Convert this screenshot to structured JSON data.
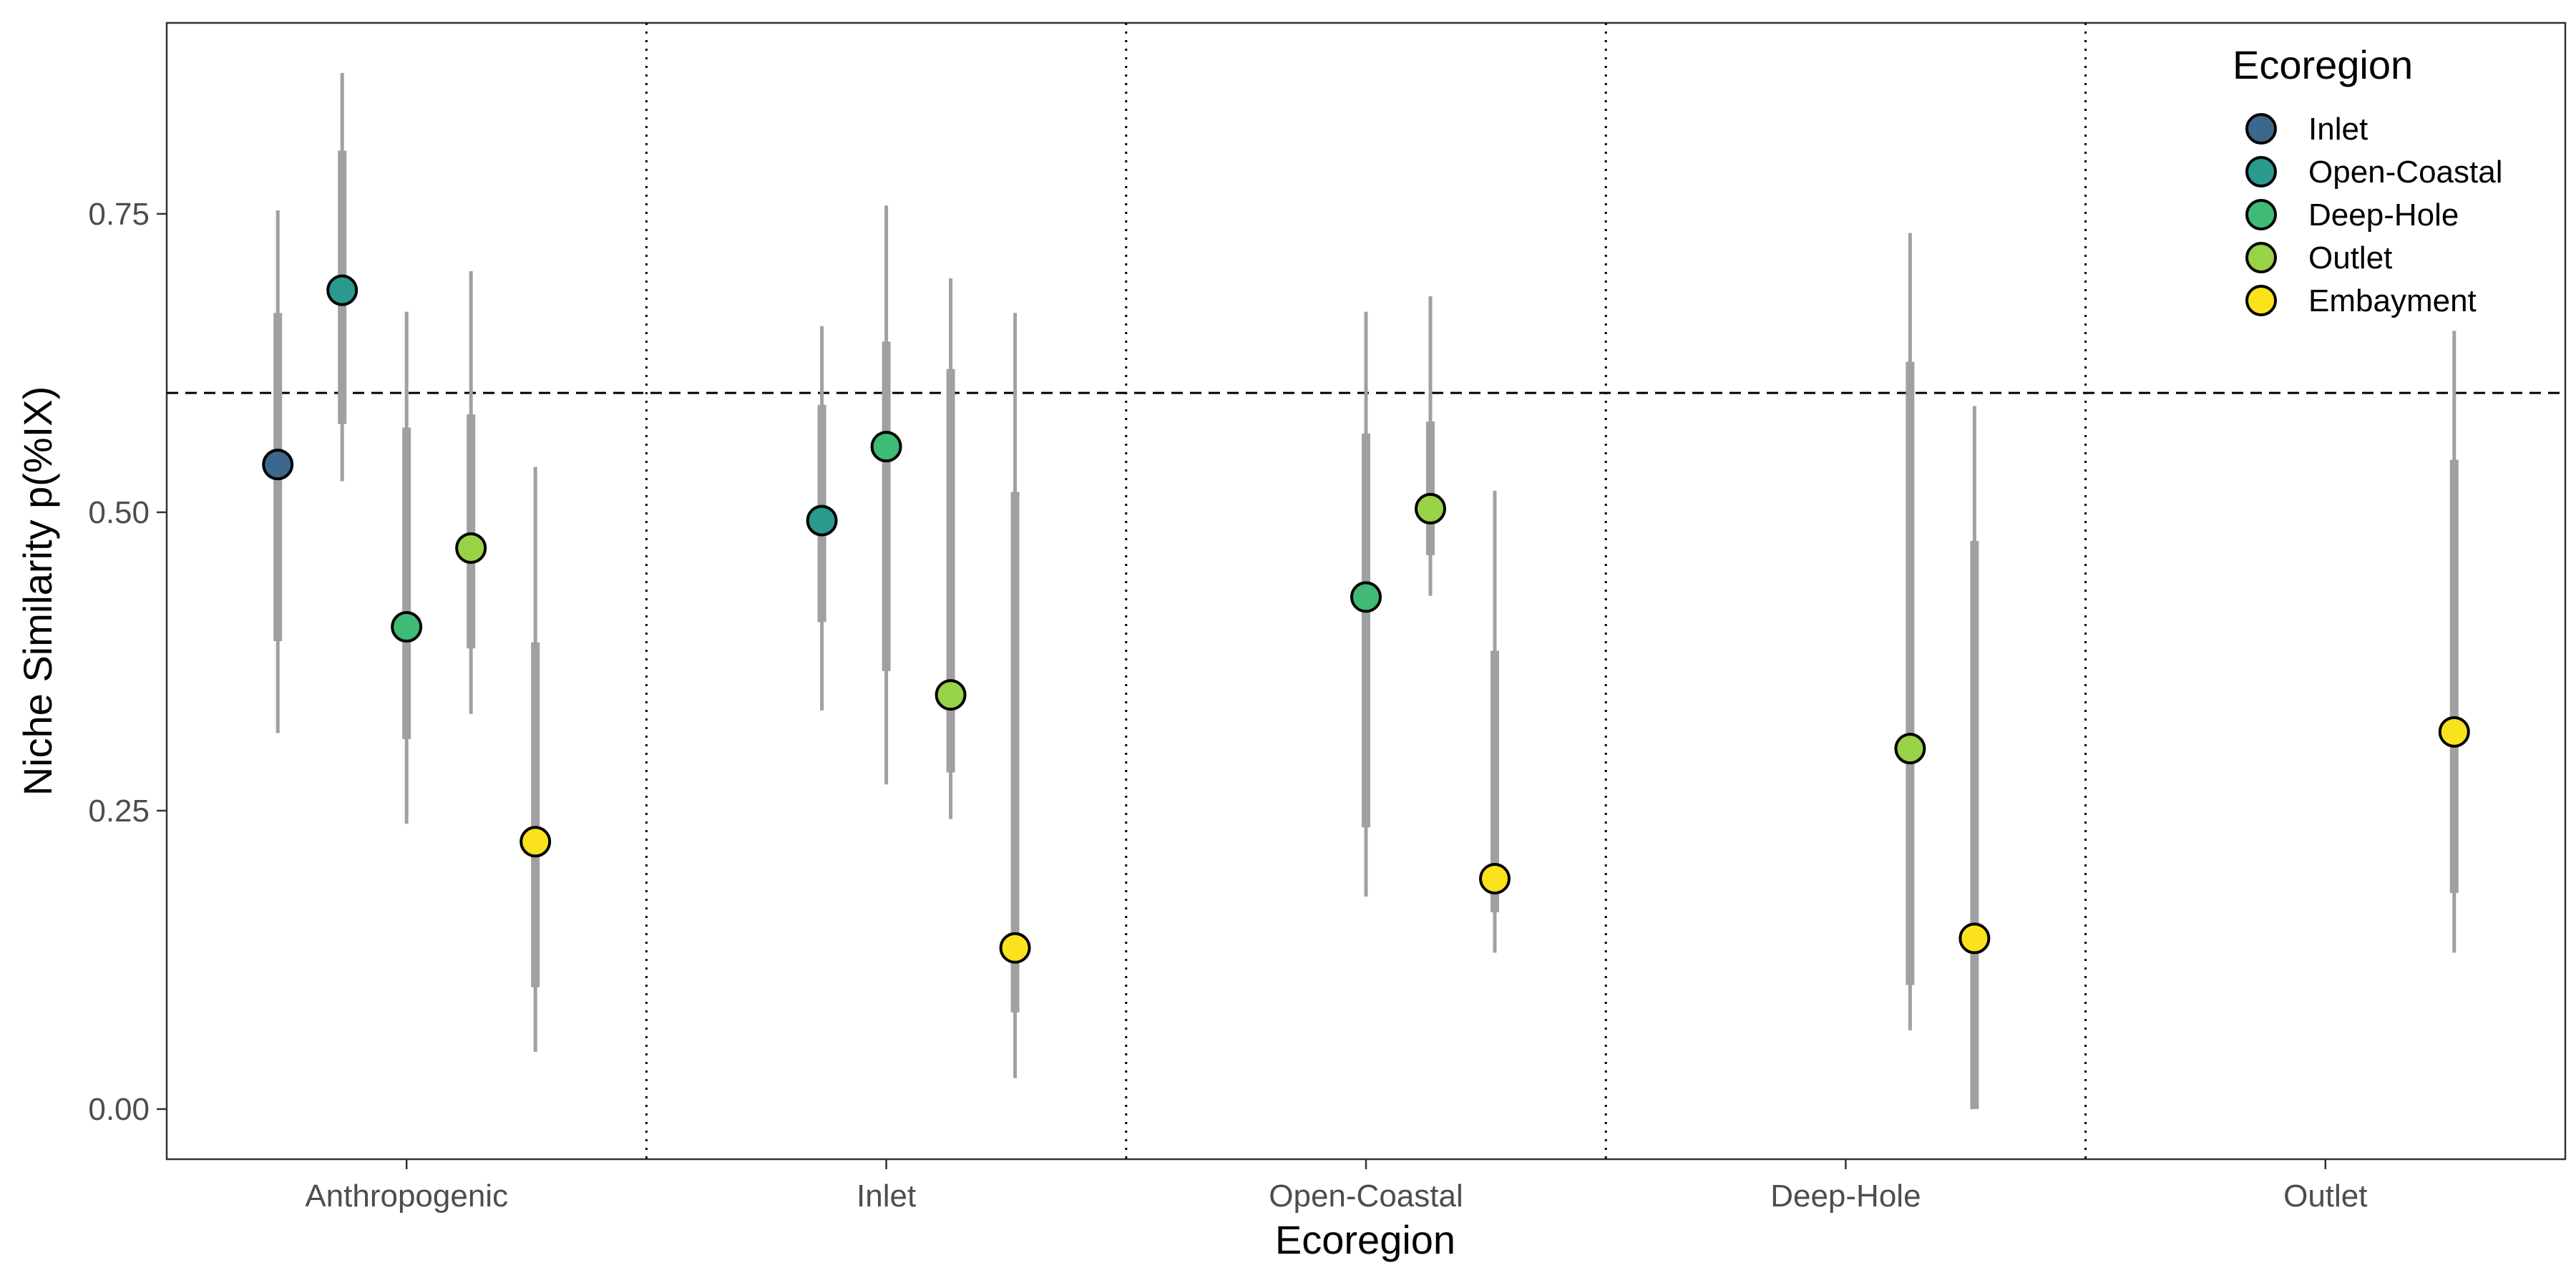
{
  "chart_data": {
    "type": "scatter",
    "title": "",
    "xlabel": "Ecoregion",
    "ylabel": "Niche Similarity p(%IX)",
    "categories": [
      "Anthropogenic",
      "Inlet",
      "Open-Coastal",
      "Deep-Hole",
      "Outlet"
    ],
    "y_ticks": [
      "0.00",
      "0.25",
      "0.50",
      "0.75"
    ],
    "ylim": [
      -0.042,
      0.91
    ],
    "reference_line": 0.6,
    "legend": {
      "title": "Ecoregion",
      "position": "top-right",
      "entries": [
        {
          "name": "Inlet",
          "color": "#3b688c"
        },
        {
          "name": "Open-Coastal",
          "color": "#2a9a8e"
        },
        {
          "name": "Deep-Hole",
          "color": "#3fbb76"
        },
        {
          "name": "Outlet",
          "color": "#98d246"
        },
        {
          "name": "Embayment",
          "color": "#fae21c"
        }
      ]
    },
    "series": [
      {
        "name": "Inlet",
        "points": [
          {
            "category": "Anthropogenic",
            "value": 0.54,
            "inner": [
              0.392,
              0.667
            ],
            "outer": [
              0.315,
              0.753
            ]
          }
        ]
      },
      {
        "name": "Open-Coastal",
        "points": [
          {
            "category": "Anthropogenic",
            "value": 0.686,
            "inner": [
              0.574,
              0.803
            ],
            "outer": [
              0.526,
              0.868
            ]
          },
          {
            "category": "Inlet",
            "value": 0.493,
            "inner": [
              0.408,
              0.59
            ],
            "outer": [
              0.334,
              0.656
            ]
          }
        ]
      },
      {
        "name": "Deep-Hole",
        "points": [
          {
            "category": "Anthropogenic",
            "value": 0.404,
            "inner": [
              0.31,
              0.571
            ],
            "outer": [
              0.239,
              0.668
            ]
          },
          {
            "category": "Inlet",
            "value": 0.555,
            "inner": [
              0.367,
              0.643
            ],
            "outer": [
              0.272,
              0.757
            ]
          },
          {
            "category": "Open-Coastal",
            "value": 0.429,
            "inner": [
              0.236,
              0.566
            ],
            "outer": [
              0.178,
              0.668
            ]
          }
        ]
      },
      {
        "name": "Outlet",
        "points": [
          {
            "category": "Anthropogenic",
            "value": 0.47,
            "inner": [
              0.386,
              0.582
            ],
            "outer": [
              0.331,
              0.702
            ]
          },
          {
            "category": "Inlet",
            "value": 0.347,
            "inner": [
              0.282,
              0.62
            ],
            "outer": [
              0.243,
              0.696
            ]
          },
          {
            "category": "Open-Coastal",
            "value": 0.503,
            "inner": [
              0.464,
              0.576
            ],
            "outer": [
              0.43,
              0.681
            ]
          },
          {
            "category": "Deep-Hole",
            "value": 0.302,
            "inner": [
              0.104,
              0.626
            ],
            "outer": [
              0.066,
              0.734
            ]
          }
        ]
      },
      {
        "name": "Embayment",
        "points": [
          {
            "category": "Anthropogenic",
            "value": 0.224,
            "inner": [
              0.102,
              0.391
            ],
            "outer": [
              0.048,
              0.538
            ]
          },
          {
            "category": "Inlet",
            "value": 0.135,
            "inner": [
              0.081,
              0.517
            ],
            "outer": [
              0.026,
              0.667
            ]
          },
          {
            "category": "Open-Coastal",
            "value": 0.193,
            "inner": [
              0.165,
              0.384
            ],
            "outer": [
              0.131,
              0.518
            ]
          },
          {
            "category": "Deep-Hole",
            "value": 0.143,
            "inner": [
              0.0,
              0.476
            ],
            "outer": [
              0.0,
              0.589
            ]
          },
          {
            "category": "Outlet",
            "value": 0.316,
            "inner": [
              0.181,
              0.544
            ],
            "outer": [
              0.131,
              0.652
            ]
          }
        ]
      }
    ]
  }
}
